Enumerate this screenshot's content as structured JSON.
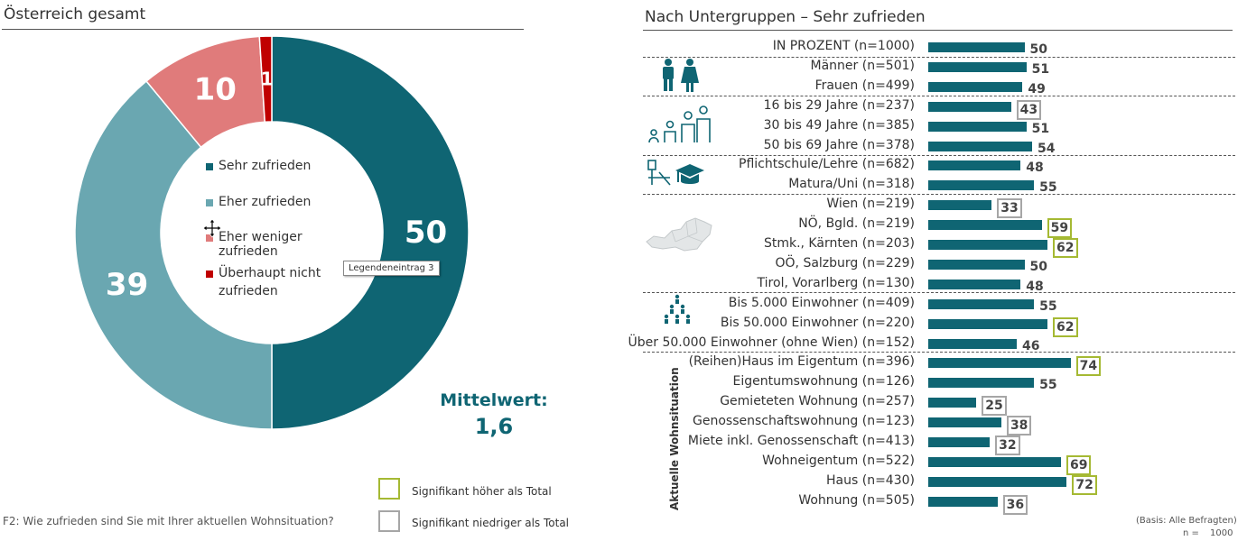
{
  "left": {
    "title": "Österreich gesamt",
    "legend": [
      {
        "label": "Sehr zufrieden",
        "color": "#0f6573"
      },
      {
        "label": "Eher zufrieden",
        "color": "#6aa7b1"
      },
      {
        "label": "Eher weniger zufrieden",
        "color": "#e07b7b"
      },
      {
        "label": "Überhaupt nicht zufrieden",
        "color": "#c00000"
      }
    ],
    "tooltip": "Legendeneintrag 3",
    "mittelwert_label": "Mittelwert:",
    "mittelwert_value": "1,6",
    "question": "F2: Wie zufrieden sind Sie mit Ihrer aktuellen Wohnsituation?"
  },
  "chart_data": [
    {
      "type": "pie",
      "title": "Österreich gesamt",
      "categories": [
        "Sehr zufrieden",
        "Eher zufrieden",
        "Eher weniger zufrieden",
        "Überhaupt nicht zufrieden"
      ],
      "values": [
        50,
        39,
        10,
        1
      ],
      "value_labels": [
        "50",
        "39",
        "10",
        "1"
      ],
      "colors": [
        "#0f6573",
        "#6aa7b1",
        "#e07b7b",
        "#c00000"
      ],
      "legend_position": "center"
    },
    {
      "type": "bar",
      "orientation": "horizontal",
      "title": "Nach Untergruppen – Sehr zufrieden",
      "categories": [
        "IN PROZENT (n=1000)",
        "Männer (n=501)",
        "Frauen (n=499)",
        "16 bis 29 Jahre (n=237)",
        "30 bis 49 Jahre (n=385)",
        "50 bis 69 Jahre (n=378)",
        "Pflichtschule/Lehre (n=682)",
        "Matura/Uni (n=318)",
        "Wien (n=219)",
        "NÖ, Bgld. (n=219)",
        "Stmk., Kärnten (n=203)",
        "OÖ, Salzburg (n=229)",
        "Tirol, Vorarlberg (n=130)",
        "Bis 5.000 Einwohner (n=409)",
        "Bis 50.000 Einwohner (n=220)",
        "Über 50.000 Einwohner (ohne Wien) (n=152)",
        "(Reihen)Haus im Eigentum (n=396)",
        "Eigentumswohnung (n=126)",
        "Gemieteten Wohnung (n=257)",
        "Genossenschaftswohnung (n=123)",
        "Miete inkl. Genossenschaft (n=413)",
        "Wohneigentum (n=522)",
        "Haus  (n=430)",
        "Wohnung  (n=505)"
      ],
      "values": [
        50,
        51,
        49,
        43,
        51,
        54,
        48,
        55,
        33,
        59,
        62,
        50,
        48,
        55,
        62,
        46,
        74,
        55,
        25,
        38,
        32,
        69,
        72,
        36
      ],
      "significance": [
        "",
        "",
        "",
        "low",
        "",
        "",
        "",
        "",
        "low",
        "high",
        "high",
        "",
        "",
        "",
        "high",
        "",
        "high",
        "",
        "low",
        "low",
        "low",
        "high",
        "high",
        "low"
      ],
      "color": "#0f6573"
    }
  ],
  "right": {
    "title": "Nach Untergruppen – Sehr zufrieden",
    "vertical_label": "Aktuelle Wohnsituation",
    "basis": "(Basis: Alle Befragten)",
    "n_label": "n =",
    "n_value": "1000"
  },
  "significance_legend": {
    "higher": {
      "label": "Signifikant höher als Total",
      "color": "#a5b933"
    },
    "lower": {
      "label": "Signifikant niedriger als Total",
      "color": "#a6a6a6"
    }
  }
}
